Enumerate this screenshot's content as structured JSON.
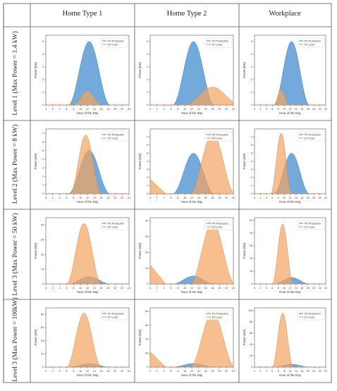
{
  "columns": [
    "Home Type 1",
    "Home Type 2",
    "Workplace"
  ],
  "rows": [
    "Level 1 (Max Power = 1.4 kW)",
    "Level 2 (Max Power = 8 kW)",
    "Level 3 (Max Power = 50 kW)",
    "Level 3 (Max Power = 100kW)"
  ],
  "common": {
    "xlabel": "Hour of the Day",
    "ylabel": "Power (kW)",
    "x_ticks": [
      0,
      2,
      4,
      6,
      8,
      10,
      12,
      14,
      16,
      18,
      20,
      22,
      24
    ],
    "xlim": [
      0,
      24
    ],
    "legend_position": "top-right",
    "series_names": [
      "PV Production",
      "EV Load"
    ],
    "colors": {
      "pv": "#5b9bd5",
      "ev": "#f4a460",
      "pv_line": "#4a7fb0",
      "ev_line": "#d88a4a",
      "overlap": "#9e8a78"
    }
  },
  "chart_data": [
    {
      "type": "area",
      "row": 0,
      "col": 0,
      "ylim": [
        0,
        5.5
      ],
      "y_ticks": [
        0,
        1,
        2,
        3,
        4,
        5
      ],
      "series": [
        {
          "name": "PV Production",
          "peak": 5,
          "center": 12.5,
          "halfwidth": 6
        },
        {
          "name": "EV Load",
          "peak": 1.1,
          "center": 12,
          "halfwidth": 4
        }
      ]
    },
    {
      "type": "area",
      "row": 0,
      "col": 1,
      "ylim": [
        0,
        5.5
      ],
      "y_ticks": [
        0,
        1,
        2,
        3,
        4,
        5
      ],
      "series": [
        {
          "name": "PV Production",
          "peak": 5,
          "center": 12.5,
          "halfwidth": 6
        },
        {
          "name": "EV Load",
          "peak": 1.4,
          "center": 18,
          "halfwidth": 8
        }
      ]
    },
    {
      "type": "area",
      "row": 0,
      "col": 2,
      "ylim": [
        0,
        5.5
      ],
      "y_ticks": [
        0,
        1,
        2,
        3,
        4,
        5
      ],
      "series": [
        {
          "name": "PV Production",
          "peak": 5,
          "center": 12.5,
          "halfwidth": 6
        },
        {
          "name": "EV Load",
          "peak": 1.2,
          "center": 9,
          "halfwidth": 2.5
        }
      ]
    },
    {
      "type": "area",
      "row": 1,
      "col": 0,
      "ylim": [
        0,
        7.5
      ],
      "y_ticks": [
        0,
        1,
        2,
        3,
        4,
        5,
        6,
        7
      ],
      "series": [
        {
          "name": "PV Production",
          "peak": 5,
          "center": 12.5,
          "halfwidth": 6
        },
        {
          "name": "EV Load",
          "peak": 6.8,
          "center": 11.5,
          "halfwidth": 4.5
        }
      ]
    },
    {
      "type": "area",
      "row": 1,
      "col": 1,
      "ylim": [
        0,
        8
      ],
      "y_ticks": [
        0,
        1,
        2,
        3,
        4,
        5,
        6,
        7
      ],
      "series": [
        {
          "name": "PV Production",
          "peak": 5,
          "center": 12.5,
          "halfwidth": 6
        },
        {
          "name": "EV Load",
          "peak": 7.4,
          "center": 18,
          "halfwidth": 6.5,
          "early": 1.8
        }
      ]
    },
    {
      "type": "area",
      "row": 1,
      "col": 2,
      "ylim": [
        0,
        8
      ],
      "y_ticks": [
        0,
        1,
        2,
        3,
        4,
        5,
        6,
        7
      ],
      "series": [
        {
          "name": "PV Production",
          "peak": 5,
          "center": 12.5,
          "halfwidth": 6
        },
        {
          "name": "EV Load",
          "peak": 7.5,
          "center": 9,
          "halfwidth": 3.5
        }
      ]
    },
    {
      "type": "area",
      "row": 2,
      "col": 0,
      "ylim": [
        0,
        45
      ],
      "y_ticks": [
        0,
        10,
        20,
        30,
        40
      ],
      "series": [
        {
          "name": "PV Production",
          "peak": 5,
          "center": 12.5,
          "halfwidth": 6
        },
        {
          "name": "EV Load",
          "peak": 41,
          "center": 11,
          "halfwidth": 5
        }
      ]
    },
    {
      "type": "area",
      "row": 2,
      "col": 1,
      "ylim": [
        0,
        42
      ],
      "y_ticks": [
        0,
        10,
        20,
        30,
        40
      ],
      "series": [
        {
          "name": "PV Production",
          "peak": 5,
          "center": 12.5,
          "halfwidth": 6
        },
        {
          "name": "EV Load",
          "peak": 39,
          "center": 18,
          "halfwidth": 6.5,
          "early": 12
        }
      ]
    },
    {
      "type": "area",
      "row": 2,
      "col": 2,
      "ylim": [
        0,
        52
      ],
      "y_ticks": [
        0,
        10,
        20,
        30,
        40,
        50
      ],
      "series": [
        {
          "name": "PV Production",
          "peak": 5,
          "center": 12.5,
          "halfwidth": 6
        },
        {
          "name": "EV Load",
          "peak": 47,
          "center": 9.5,
          "halfwidth": 3.5
        }
      ]
    },
    {
      "type": "area",
      "row": 3,
      "col": 0,
      "ylim": [
        0,
        90
      ],
      "y_ticks": [
        0,
        20,
        40,
        60,
        80
      ],
      "series": [
        {
          "name": "PV Production",
          "peak": 5,
          "center": 12.5,
          "halfwidth": 6
        },
        {
          "name": "EV Load",
          "peak": 82,
          "center": 11,
          "halfwidth": 5
        }
      ]
    },
    {
      "type": "area",
      "row": 3,
      "col": 1,
      "ylim": [
        0,
        85
      ],
      "y_ticks": [
        0,
        20,
        40,
        60,
        80
      ],
      "series": [
        {
          "name": "PV Production",
          "peak": 5,
          "center": 12.5,
          "halfwidth": 6
        },
        {
          "name": "EV Load",
          "peak": 78,
          "center": 18,
          "halfwidth": 6.5,
          "early": 22
        }
      ]
    },
    {
      "type": "area",
      "row": 3,
      "col": 2,
      "ylim": [
        0,
        105
      ],
      "y_ticks": [
        0,
        20,
        40,
        60,
        80,
        100
      ],
      "series": [
        {
          "name": "PV Production",
          "peak": 5,
          "center": 12.5,
          "halfwidth": 6
        },
        {
          "name": "EV Load",
          "peak": 96,
          "center": 9.5,
          "halfwidth": 3.5
        }
      ]
    }
  ]
}
